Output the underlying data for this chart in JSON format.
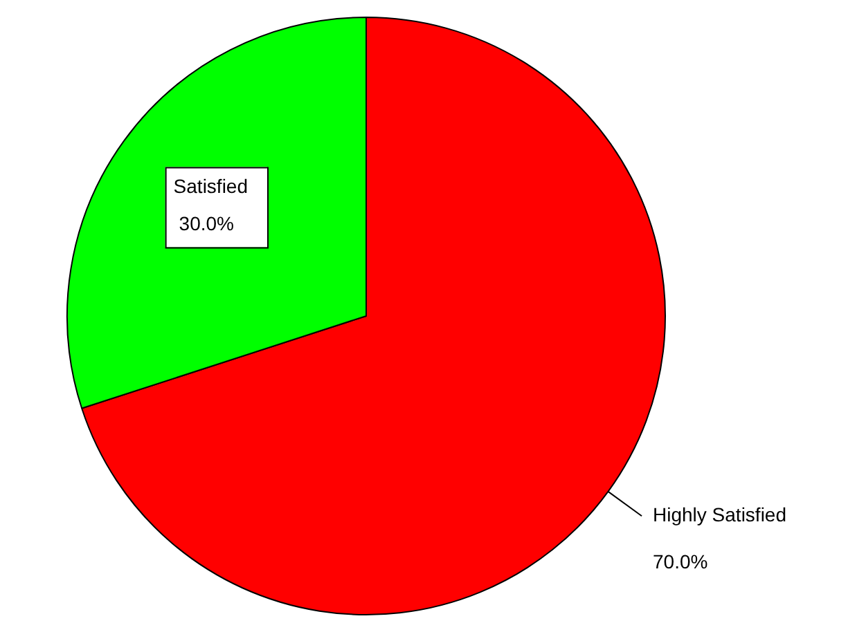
{
  "chart_data": {
    "type": "pie",
    "categories": [
      "Highly Satisfied",
      "Satisfied"
    ],
    "values": [
      70,
      30
    ],
    "colors": [
      "#ff0000",
      "#00ff00"
    ],
    "value_labels": [
      "70.0%",
      "30.0%"
    ],
    "legend": false
  }
}
